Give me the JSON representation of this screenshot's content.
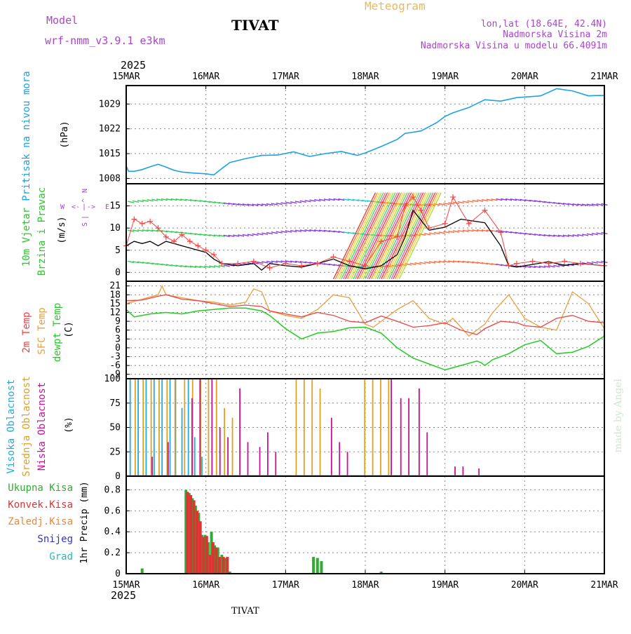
{
  "header": {
    "model_label": "Model",
    "model_name": "wrf-nmm_v3.9.1 e3km",
    "station": "TIVAT",
    "product": "Meteogram",
    "location": "lon,lat (18.64E, 42.4N)",
    "elevation": "Nadmorska Visina 2m",
    "model_elevation": "Nadmorska Visina u modelu 66.4091m",
    "year": "2025",
    "footer_station": "TIVAT",
    "watermark": "made by Angel"
  },
  "colors": {
    "pressure": "#1da1e6",
    "wind_speed": "#000000",
    "gust": "#ff4040",
    "temp2m": "#ee4444",
    "sfc_temp": "#e8a040",
    "dewpoint": "#22cc22",
    "high_cloud": "#22aadd",
    "mid_cloud": "#e0a020",
    "low_cloud": "#cc1199",
    "total_rain": "#33aa33",
    "conv_rain": "#dd3333",
    "freezing_rain": "#ee8833",
    "snow": "#3333cc",
    "hail": "#22bbbb",
    "header_text": "#aa44cc",
    "meteogram_title": "#e8b860",
    "pressure_label": "#1da1e6",
    "wind_label": "#22cc22",
    "compass": "#aa44cc"
  },
  "x_axis": {
    "ticks": [
      "15MAR",
      "16MAR",
      "17MAR",
      "18MAR",
      "19MAR",
      "20MAR",
      "21MAR"
    ],
    "day_range": [
      0,
      6
    ]
  },
  "chart_data": [
    {
      "type": "line",
      "id": "pressure",
      "ylabel_main": "Pritisak na nivou mora",
      "unit": "(hPa)",
      "yticks": [
        "1029",
        "1022",
        "1015",
        "1008"
      ],
      "ylim": [
        1006.5,
        1034.2
      ],
      "series": [
        {
          "name": "sea level pressure",
          "x": [
            0,
            0.03,
            0.1,
            0.2,
            0.3,
            0.4,
            0.5,
            0.6,
            0.7,
            0.85,
            1.0,
            1.1,
            1.2,
            1.3,
            1.5,
            1.7,
            1.9,
            2.1,
            2.3,
            2.5,
            2.7,
            2.9,
            3.0,
            3.2,
            3.4,
            3.5,
            3.7,
            3.9,
            4.0,
            4.1,
            4.3,
            4.5,
            4.7,
            4.9,
            5.2,
            5.4,
            5.6,
            5.8,
            5.9,
            6.0
          ],
          "values": [
            1011.5,
            1010,
            1010,
            1010.5,
            1011.3,
            1012,
            1011.2,
            1010.3,
            1009.8,
            1009.5,
            1009.3,
            1009.0,
            1010.8,
            1012.5,
            1013.6,
            1014.5,
            1014.6,
            1015.5,
            1014.2,
            1015.0,
            1015.6,
            1014.5,
            1015.2,
            1017.0,
            1019.0,
            1020.7,
            1021.4,
            1023.8,
            1025.5,
            1026.5,
            1028.0,
            1030.2,
            1029.8,
            1030.8,
            1031.3,
            1033.3,
            1032.7,
            1031.3,
            1031.4,
            1031.4
          ]
        }
      ]
    },
    {
      "type": "line",
      "id": "wind",
      "ylabel_main": "10m Vjetar",
      "ylabel_sub": "Brzina i Pravac",
      "unit": "(m/s)",
      "compass": [
        "W",
        "<-",
        "|",
        "->",
        "E"
      ],
      "compass_ns": [
        "N",
        "^",
        "|",
        "S"
      ],
      "yticks": [
        "15",
        "10",
        "5",
        "0"
      ],
      "ylim": [
        -2,
        20
      ],
      "series": [
        {
          "name": "wind speed",
          "x": [
            0,
            0.1,
            0.2,
            0.3,
            0.4,
            0.5,
            0.6,
            0.7,
            0.8,
            0.9,
            1.0,
            1.1,
            1.2,
            1.4,
            1.6,
            1.7,
            1.8,
            2.0,
            2.2,
            2.4,
            2.6,
            2.8,
            3.0,
            3.2,
            3.4,
            3.5,
            3.6,
            3.8,
            4.0,
            4.2,
            4.5,
            4.7,
            4.8,
            4.9,
            5.1,
            5.3,
            5.5,
            5.7,
            6.0
          ],
          "values": [
            6,
            7,
            6.5,
            7,
            6,
            7,
            6.5,
            6,
            5.5,
            5,
            4.5,
            3,
            2,
            1.5,
            2,
            0.5,
            2,
            1.5,
            1.2,
            2,
            3,
            1.5,
            0.8,
            1.5,
            4,
            8,
            14,
            9.5,
            10.2,
            12,
            11.2,
            6,
            1.5,
            1.2,
            1.8,
            2.4,
            1.6,
            2.0,
            1.5
          ]
        },
        {
          "name": "gusts",
          "x": [
            0,
            0.1,
            0.2,
            0.3,
            0.4,
            0.5,
            0.6,
            0.7,
            0.8,
            0.9,
            1.0,
            1.1,
            1.2,
            1.4,
            1.6,
            1.8,
            2.0,
            2.2,
            2.4,
            2.6,
            2.8,
            3.0,
            3.2,
            3.4,
            3.5,
            3.6,
            3.7,
            3.8,
            4.0,
            4.1,
            4.3,
            4.5,
            4.7,
            4.8,
            4.9,
            5.1,
            5.3,
            5.5,
            5.7,
            6.0
          ],
          "values": [
            6,
            12,
            11,
            11.5,
            10,
            8,
            7,
            8.5,
            7,
            6,
            5,
            4,
            2,
            2,
            2.5,
            1,
            2,
            1.5,
            2,
            3.5,
            2.5,
            1.5,
            7,
            8,
            15,
            17,
            14,
            10,
            11,
            17,
            11,
            14,
            9,
            1.5,
            2,
            2.5,
            2,
            2.5,
            2,
            1.5
          ]
        }
      ]
    },
    {
      "type": "line",
      "id": "temperature",
      "ylabel_temp": "2m Temp",
      "ylabel_sfc": "SFC Temp",
      "ylabel_dew": "dewpt Temp",
      "unit": "(C)",
      "yticks": [
        "21",
        "18",
        "15",
        "12",
        "9",
        "6",
        "3",
        "0",
        "-3",
        "-6",
        "-9"
      ],
      "ylim": [
        -10.5,
        22.6
      ],
      "series": [
        {
          "name": "2m Temp",
          "x": [
            0,
            0.2,
            0.4,
            0.5,
            0.7,
            0.9,
            1.1,
            1.3,
            1.5,
            1.7,
            1.8,
            2.0,
            2.2,
            2.4,
            2.6,
            2.8,
            3.0,
            3.2,
            3.4,
            3.6,
            3.8,
            4.0,
            4.2,
            4.4,
            4.5,
            4.7,
            4.9,
            5.0,
            5.2,
            5.4,
            5.6,
            5.8,
            6.0
          ],
          "values": [
            16,
            16.2,
            17.5,
            18,
            16.5,
            16,
            15,
            14,
            14.5,
            14,
            12.5,
            11.5,
            10.5,
            12,
            11,
            9,
            8.5,
            10.8,
            9,
            7,
            7.5,
            8.5,
            6,
            4.5,
            6.5,
            9,
            8.5,
            7.5,
            7,
            10,
            11,
            9,
            8.5
          ]
        },
        {
          "name": "SFC Temp",
          "x": [
            0,
            0.2,
            0.4,
            0.45,
            0.5,
            0.7,
            0.9,
            1.1,
            1.3,
            1.5,
            1.6,
            1.7,
            1.8,
            2.0,
            2.2,
            2.4,
            2.6,
            2.8,
            3.0,
            3.1,
            3.2,
            3.4,
            3.6,
            3.8,
            4.0,
            4.1,
            4.3,
            4.5,
            4.6,
            4.8,
            5.0,
            5.2,
            5.4,
            5.6,
            5.8,
            6.0
          ],
          "values": [
            15,
            16.5,
            18,
            21,
            18,
            17,
            16,
            15.5,
            14.5,
            15.5,
            20,
            19,
            12.5,
            11,
            10,
            13,
            18,
            17,
            8,
            7,
            9,
            13,
            16,
            10,
            8,
            10,
            4,
            8,
            12,
            18,
            10,
            7,
            6,
            19,
            15,
            6.5
          ]
        },
        {
          "name": "dewpt Temp",
          "x": [
            0,
            0.1,
            0.3,
            0.5,
            0.7,
            0.9,
            1.1,
            1.3,
            1.5,
            1.7,
            1.8,
            2.0,
            2.2,
            2.4,
            2.6,
            2.8,
            3.0,
            3.2,
            3.4,
            3.6,
            3.8,
            4.0,
            4.2,
            4.4,
            4.45,
            4.5,
            4.6,
            4.8,
            5.0,
            5.2,
            5.4,
            5.6,
            5.8,
            6.0
          ],
          "values": [
            13,
            10.5,
            11.5,
            12,
            11.5,
            12.5,
            13,
            13.5,
            13.5,
            12.5,
            11,
            6.5,
            3,
            5,
            5.5,
            6.8,
            7,
            5,
            0,
            -3.5,
            -5.5,
            -7.5,
            -6,
            -4.5,
            -5,
            -6,
            -4,
            -2,
            1,
            2.5,
            -2,
            -1.5,
            0.5,
            4
          ]
        }
      ]
    },
    {
      "type": "bar",
      "id": "clouds",
      "ylabel_high": "Visoka Oblacnost",
      "ylabel_mid": "Srednja Oblacnost",
      "ylabel_low": "Niska Oblacnost",
      "unit": "(%)",
      "yticks": [
        "100",
        "75",
        "50",
        "25",
        "0"
      ],
      "ylim": [
        0,
        100
      ],
      "series": [
        {
          "name": "Visoka Oblacnost",
          "x": [
            0.05,
            0.15,
            0.25,
            0.35,
            0.45,
            0.55,
            0.62,
            0.7,
            0.78,
            0.86,
            0.95
          ],
          "values": [
            100,
            100,
            100,
            100,
            100,
            100,
            100,
            70,
            100,
            40,
            20
          ]
        },
        {
          "name": "Srednja Oblacnost",
          "x": [
            0.1,
            0.2,
            0.3,
            0.4,
            0.5,
            0.6,
            0.72,
            0.82,
            0.92,
            1.02,
            1.12,
            1.22,
            1.32,
            2.12,
            2.22,
            2.32,
            2.42,
            2.98,
            3.08,
            3.18,
            3.28
          ],
          "values": [
            100,
            100,
            100,
            100,
            100,
            100,
            100,
            100,
            100,
            100,
            100,
            70,
            60,
            100,
            100,
            100,
            90,
            100,
            100,
            100,
            100
          ]
        },
        {
          "name": "Niska Oblacnost",
          "x": [
            0.3,
            0.5,
            0.8,
            0.9,
            1.05,
            1.15,
            1.25,
            1.4,
            1.5,
            1.65,
            1.75,
            1.85,
            2.55,
            2.65,
            2.75,
            3.3,
            3.42,
            3.52,
            3.65,
            3.75,
            4.1,
            4.2,
            4.4
          ],
          "values": [
            20,
            35,
            80,
            100,
            100,
            50,
            40,
            90,
            35,
            30,
            45,
            25,
            60,
            35,
            25,
            100,
            80,
            80,
            90,
            45,
            10,
            10,
            8
          ]
        }
      ]
    },
    {
      "type": "bar",
      "id": "precip",
      "legend": [
        "Ukupna Kisa",
        "Konvek.Kisa",
        "Zaledj.Kisa",
        "Snijeg",
        "Grad"
      ],
      "ylabel": "1hr Precip (mm)",
      "yticks": [
        "0.8",
        "0.6",
        "0.4",
        "0.2",
        "0"
      ],
      "ylim": [
        0,
        0.93
      ],
      "series": [
        {
          "name": "Ukupna Kisa",
          "x": [
            0.2,
            0.75,
            0.79,
            0.83,
            0.87,
            0.91,
            0.95,
            0.99,
            1.03,
            1.07,
            1.11,
            1.15,
            1.2,
            1.25,
            1.3,
            2.35,
            2.4,
            2.45,
            3.2
          ],
          "values": [
            0.05,
            0.8,
            0.77,
            0.72,
            0.65,
            0.58,
            0.37,
            0.37,
            0.3,
            0.4,
            0.27,
            0.25,
            0.18,
            0.15,
            0.02,
            0.16,
            0.15,
            0.12,
            0.02
          ]
        },
        {
          "name": "Konvek.Kisa",
          "x": [
            0.77,
            0.81,
            0.85,
            0.89,
            0.93,
            0.97,
            1.01,
            1.05,
            1.09,
            1.13,
            1.17,
            1.22,
            1.27
          ],
          "values": [
            0.78,
            0.75,
            0.7,
            0.6,
            0.5,
            0.35,
            0.36,
            0.18,
            0.3,
            0.25,
            0.16,
            0.16,
            0.16
          ]
        }
      ]
    }
  ]
}
